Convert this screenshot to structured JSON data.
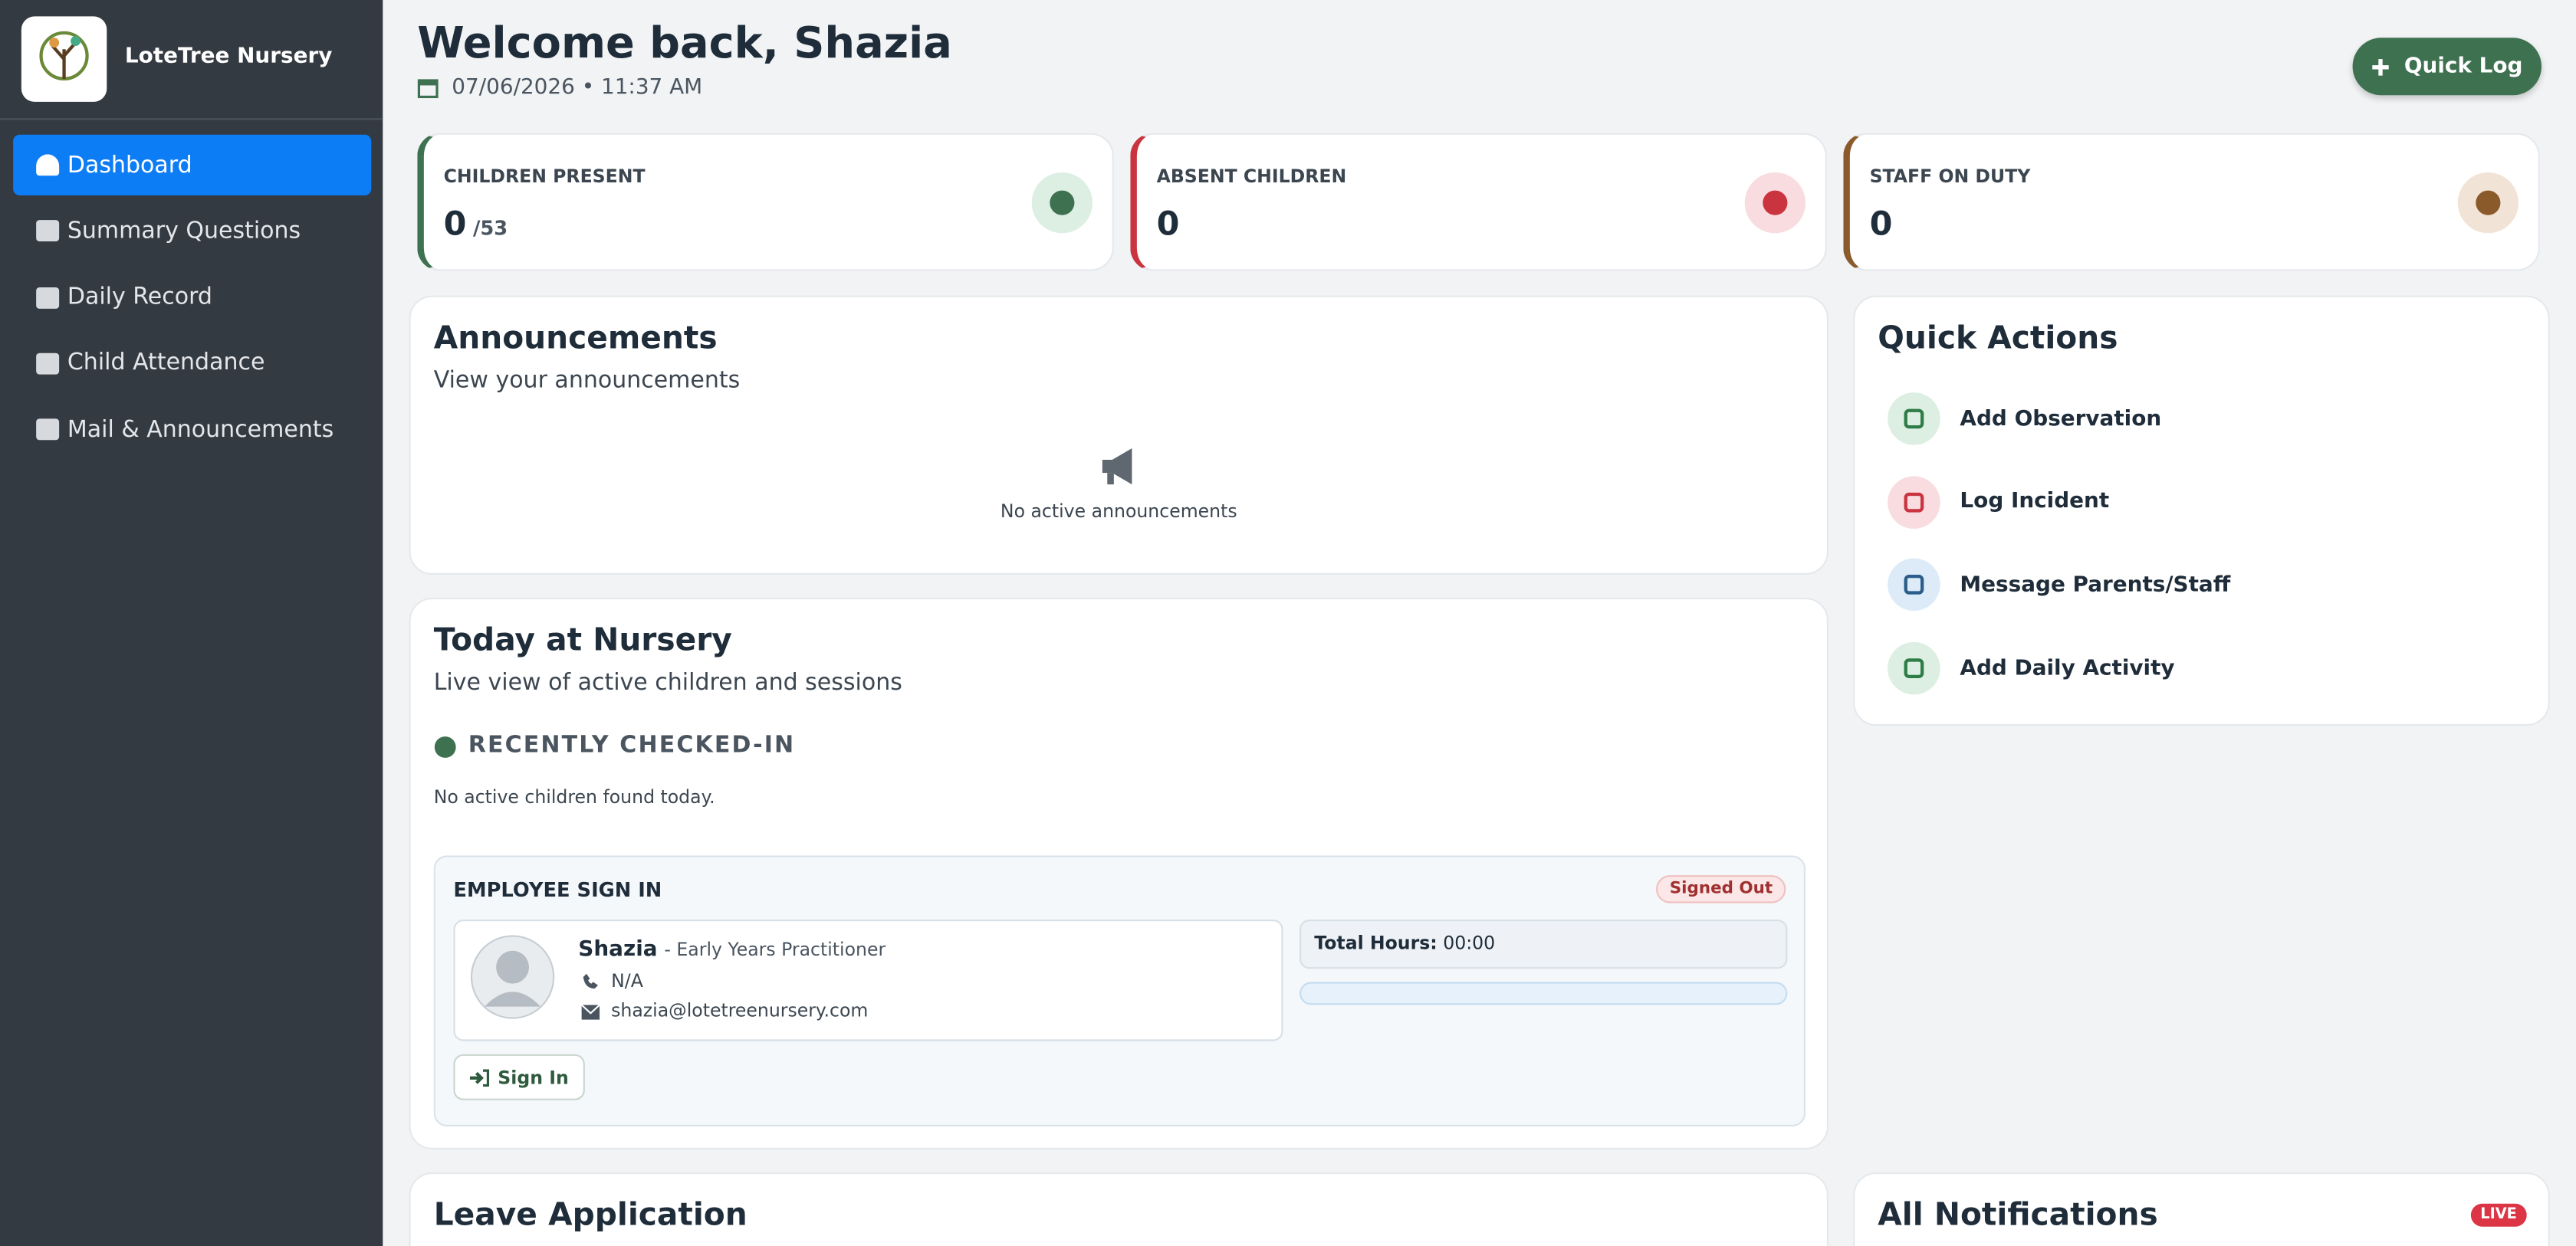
{
  "sidebar": {
    "brand": "LoteTree Nursery",
    "nav": [
      "Dashboard",
      "Summary Questions",
      "Daily Record",
      "Child Attendance",
      "Mail & Announcements"
    ]
  },
  "header": {
    "title": "Welcome back, Shazia",
    "datetime": "07/06/2026 • 11:37 AM",
    "quick_log": "Quick Log"
  },
  "stats": [
    {
      "label": "CHILDREN PRESENT",
      "value": 0,
      "suffix": "/53"
    },
    {
      "label": "ABSENT CHILDREN",
      "value": 0
    },
    {
      "label": "STAFF ON DUTY",
      "value": 0
    }
  ],
  "announcements": {
    "title": "Announcements",
    "subtitle": "View your announcements",
    "empty": "No active announcements"
  },
  "today": {
    "title": "Today at Nursery",
    "subtitle": "Live view of active children and sessions",
    "section": "RECENTLY CHECKED-IN",
    "empty": "No active children found today."
  },
  "employee": {
    "title": "EMPLOYEE SIGN IN",
    "status": "Signed Out",
    "name": "Shazia",
    "role": "- Early Years Practitioner",
    "phone": "N/A",
    "email": "shazia@lotetreenursery.com",
    "total_hours_label": "Total Hours:",
    "total_hours": "00:00",
    "sign_in": "Sign In"
  },
  "quick_actions": {
    "title": "Quick Actions",
    "items": [
      "Add Observation",
      "Log Incident",
      "Message Parents/Staff",
      "Add Daily Activity"
    ]
  },
  "leave": {
    "title": "Leave Application"
  },
  "notifications": {
    "title": "All Notifications",
    "badge": "LIVE"
  }
}
